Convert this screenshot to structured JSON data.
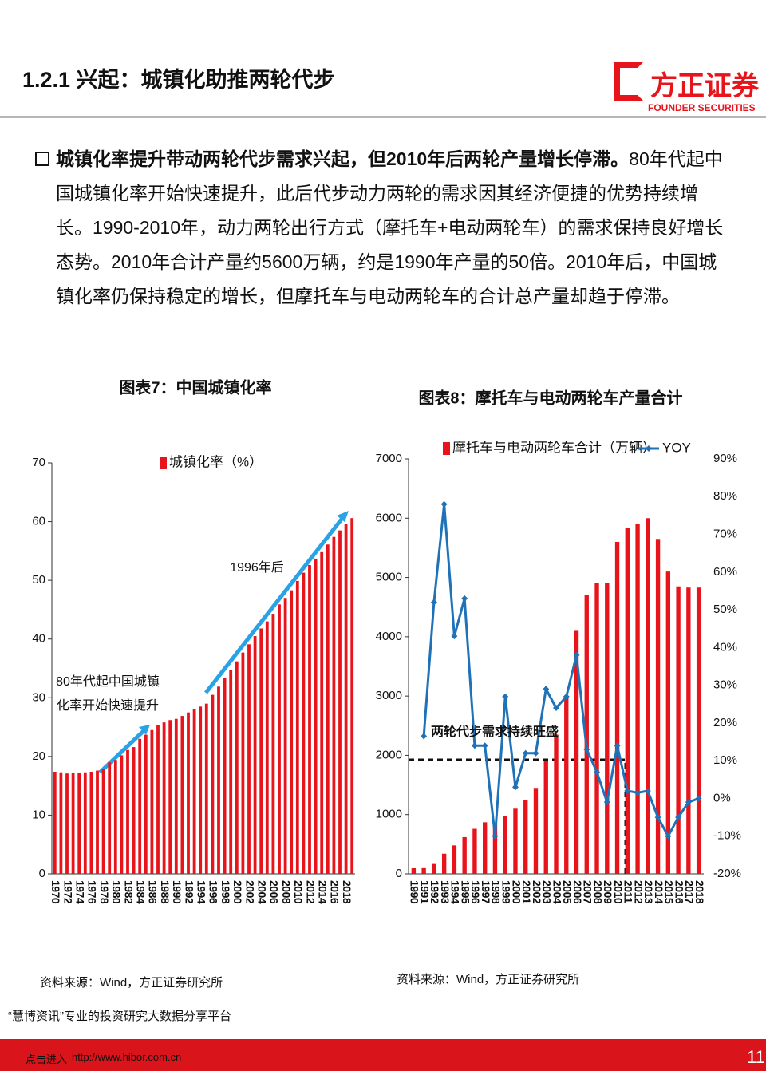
{
  "header": {
    "title": "1.2.1 兴起：城镇化助推两轮代步",
    "logo_cn": "方正证券",
    "logo_en": "FOUNDER SECURITIES"
  },
  "body": {
    "bold": "城镇化率提升带动两轮代步需求兴起，但2010年后两轮产量增长停滞。",
    "text": "80年代起中国城镇化率开始快速提升，此后代步动力两轮的需求因其经济便捷的优势持续增长。1990-2010年，动力两轮出行方式（摩托车+电动两轮车）的需求保持良好增长态势。2010年合计产量约5600万辆，约是1990年产量的50倍。2010年后，中国城镇化率仍保持稳定的增长，但摩托车与电动两轮车的合计总产量却趋于停滞。"
  },
  "chart_data": [
    {
      "type": "bar",
      "title": "图表7：中国城镇化率",
      "categories": [
        "1970",
        null,
        "1972",
        null,
        "1974",
        null,
        "1976",
        null,
        "1978",
        null,
        "1980",
        null,
        "1982",
        null,
        "1984",
        null,
        "1986",
        null,
        "1988",
        null,
        "1990",
        null,
        "1992",
        null,
        "1994",
        null,
        "1996",
        null,
        "1998",
        null,
        "2000",
        null,
        "2002",
        null,
        "2004",
        null,
        "2006",
        null,
        "2008",
        null,
        "2010",
        null,
        "2012",
        null,
        "2014",
        null,
        "2016",
        null,
        "2018",
        null
      ],
      "series": [
        {
          "name": "城镇化率（%）",
          "color": "#e8141c",
          "values": [
            17.4,
            17.3,
            17.1,
            17.2,
            17.2,
            17.3,
            17.4,
            17.6,
            17.9,
            19.0,
            19.4,
            20.2,
            21.1,
            21.6,
            23.0,
            23.7,
            24.5,
            25.3,
            25.8,
            26.2,
            26.4,
            26.9,
            27.5,
            28.0,
            28.5,
            29.0,
            30.5,
            31.9,
            33.4,
            34.8,
            36.2,
            37.7,
            39.1,
            40.5,
            41.8,
            43.0,
            44.3,
            45.9,
            47.0,
            48.3,
            49.9,
            51.3,
            52.6,
            53.7,
            54.8,
            56.1,
            57.4,
            58.5,
            59.6,
            60.6
          ]
        }
      ],
      "ylim": [
        0,
        70
      ],
      "yticks": [
        0,
        10,
        20,
        30,
        40,
        50,
        60,
        70
      ],
      "annotations": [
        "1996年后",
        "80年代起中国城镇",
        "化率开始快速提升"
      ],
      "source": "资料来源：Wind，方正证券研究所"
    },
    {
      "type": "combo",
      "title": "图表8：摩托车与电动两轮车产量合计",
      "categories": [
        "1990",
        "1991",
        "1992",
        "1993",
        "1994",
        "1995",
        "1996",
        "1997",
        "1998",
        "1999",
        "2000",
        "2001",
        "2002",
        "2003",
        "2004",
        "2005",
        "2006",
        "2007",
        "2008",
        "2009",
        "2010",
        "2011",
        "2012",
        "2013",
        "2014",
        "2015",
        "2016",
        "2017",
        "2018"
      ],
      "series": [
        {
          "name": "摩托车与电动两轮车合计（万辆）",
          "type": "bar",
          "color": "#e8141c",
          "values": [
            100,
            110,
            180,
            340,
            480,
            620,
            760,
            870,
            840,
            980,
            1100,
            1250,
            1450,
            1900,
            2350,
            3000,
            4100,
            4700,
            4900,
            4900,
            5600,
            5830,
            5900,
            6000,
            5650,
            5100,
            4850,
            4830,
            4830
          ]
        },
        {
          "name": "YOY",
          "type": "line",
          "axis": "y2",
          "color": "#1f72b8",
          "values": [
            null,
            16.5,
            52,
            78,
            43,
            53,
            14,
            14,
            -10,
            27,
            3,
            12,
            12,
            29,
            24,
            27,
            38,
            13,
            7,
            -1,
            14,
            2,
            1.5,
            2,
            -5,
            -10,
            -5,
            -1,
            0
          ]
        }
      ],
      "ylim": [
        0,
        7000
      ],
      "yticks": [
        0,
        1000,
        2000,
        3000,
        4000,
        5000,
        6000,
        7000
      ],
      "y2lim": [
        -20,
        90
      ],
      "y2ticks": [
        {
          "value": -20,
          "label": "-20%"
        },
        {
          "value": -10,
          "label": "-10%"
        },
        {
          "value": 0,
          "label": "0%"
        },
        {
          "value": 10,
          "label": "10%"
        },
        {
          "value": 20,
          "label": "20%"
        },
        {
          "value": 30,
          "label": "30%"
        },
        {
          "value": 40,
          "label": "40%"
        },
        {
          "value": 50,
          "label": "50%"
        },
        {
          "value": 60,
          "label": "60%"
        },
        {
          "value": 70,
          "label": "70%"
        },
        {
          "value": 80,
          "label": "80%"
        },
        {
          "value": 90,
          "label": "90%"
        }
      ],
      "annotations": [
        "两轮代步需求持续旺盛"
      ],
      "source": "资料来源：Wind，方正证券研究所"
    }
  ],
  "footer": {
    "platform": "“慧博资讯”专业的投资研究大数据分享平台",
    "link": "点击进入",
    "url": "http://www.hibor.com.cn",
    "page": "11"
  }
}
